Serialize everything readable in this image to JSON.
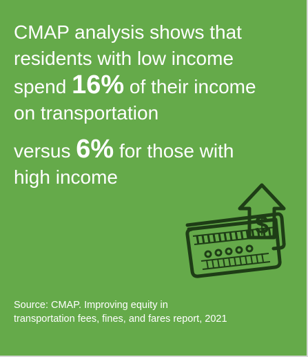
{
  "headline": {
    "line1": "CMAP analysis shows that",
    "line2": "residents with low income",
    "line3_pre": "spend ",
    "line3_big": "16%",
    "line3_post": " of their income",
    "line4": "on transportation",
    "line5_pre": "versus ",
    "line5_big": "6%",
    "line5_post": " for those with",
    "line6": "high income"
  },
  "icon": {
    "name": "credit-card-dollar-up-icon"
  },
  "source": {
    "line1": "Source: CMAP. Improving equity in",
    "line2": "transportation fees, fines, and fares report, 2021"
  },
  "colors": {
    "background": "#65aa4a",
    "text": "#ffffff",
    "icon": "#1e3d16"
  }
}
